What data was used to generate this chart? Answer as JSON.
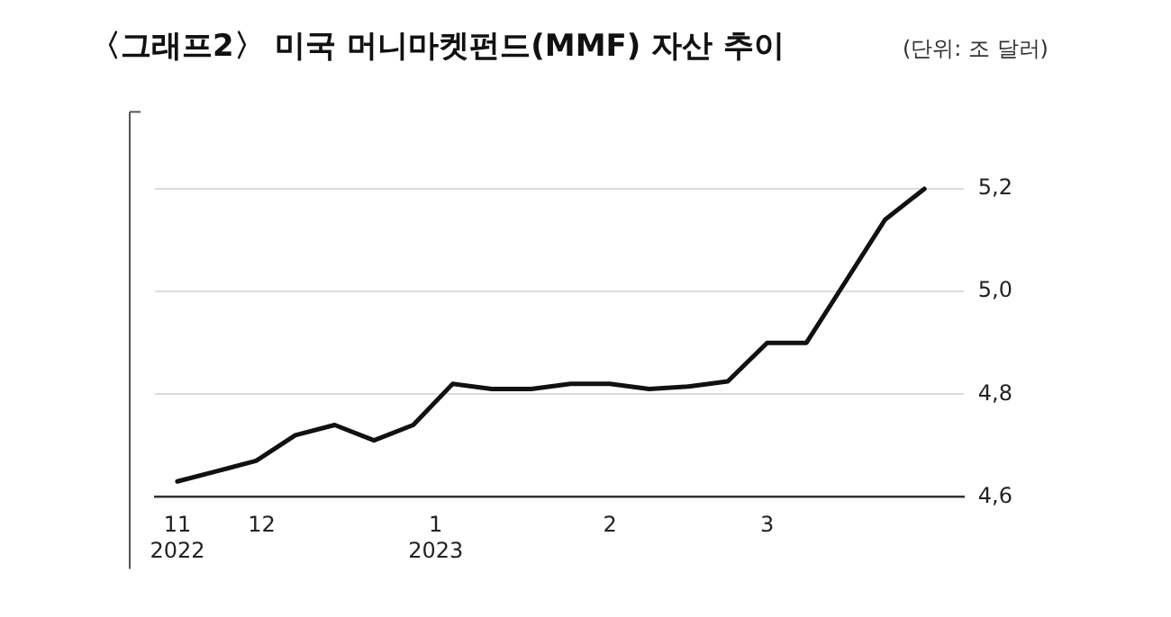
{
  "chart_data": {
    "type": "line",
    "title": "〈그래프2〉 미국 머니마켓펀드(MMF) 자산 추이",
    "subtitle": "(단위: 조 달러)",
    "x": [
      "2022-11-16",
      "2022-11-23",
      "2022-11-30",
      "2022-12-07",
      "2022-12-14",
      "2022-12-21",
      "2022-12-28",
      "2023-01-04",
      "2023-01-11",
      "2023-01-18",
      "2023-01-25",
      "2023-02-01",
      "2023-02-08",
      "2023-02-15",
      "2023-02-22",
      "2023-03-01",
      "2023-03-08",
      "2023-03-15",
      "2023-03-22",
      "2023-03-29"
    ],
    "series": [
      {
        "color": "#111111",
        "values": [
          4.63,
          4.65,
          4.67,
          4.72,
          4.74,
          4.71,
          4.74,
          4.82,
          4.81,
          4.81,
          4.82,
          4.82,
          4.81,
          4.815,
          4.825,
          4.9,
          4.9,
          5.02,
          5.14,
          5.2
        ]
      }
    ],
    "xlim": [
      "2022-11-12",
      "2023-04-05"
    ],
    "xticks": [
      {
        "value": "2022-11-16",
        "label": "11\n2022"
      },
      {
        "value": "2022-12-01",
        "label": "12"
      },
      {
        "value": "2023-01-01",
        "label": "1\n2023"
      },
      {
        "value": "2023-02-01",
        "label": "2"
      },
      {
        "value": "2023-03-01",
        "label": "3"
      }
    ],
    "ylim": [
      4.6,
      5.35
    ],
    "yticks": [
      {
        "value": 4.6,
        "label": "4,6"
      },
      {
        "value": 4.8,
        "label": "4,8"
      },
      {
        "value": 5.0,
        "label": "5,0"
      },
      {
        "value": 5.2,
        "label": "5,2"
      }
    ],
    "grid": "y",
    "legend": false,
    "marker": "none",
    "line_style": "solid"
  }
}
